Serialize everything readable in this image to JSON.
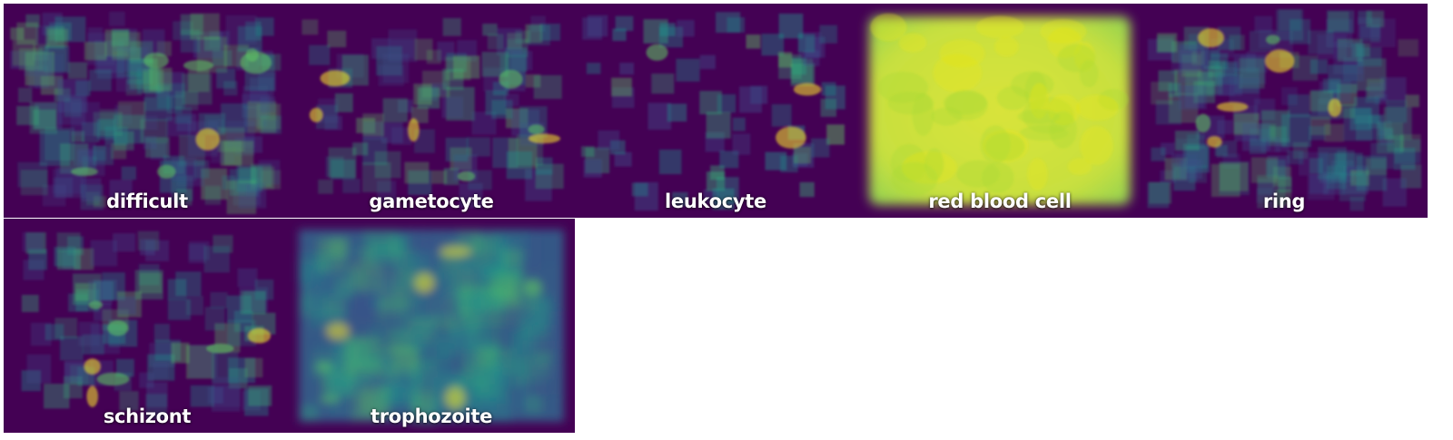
{
  "panels": [
    {
      "label": "difficult",
      "style": "dense-boxes"
    },
    {
      "label": "gametocyte",
      "style": "sparse-boxes"
    },
    {
      "label": "leukocyte",
      "style": "sparse-clustered-boxes"
    },
    {
      "label": "red blood cell",
      "style": "uniform-bright"
    },
    {
      "label": "ring",
      "style": "dense-boxes"
    },
    {
      "label": "schizont",
      "style": "sparse-boxes"
    },
    {
      "label": "trophozoite",
      "style": "dense-blurred"
    }
  ],
  "colormap": "viridis",
  "colors": {
    "background": "#440154",
    "low": "#3b528b",
    "mid": "#21918c",
    "high": "#5ec962",
    "peak": "#fde725"
  }
}
